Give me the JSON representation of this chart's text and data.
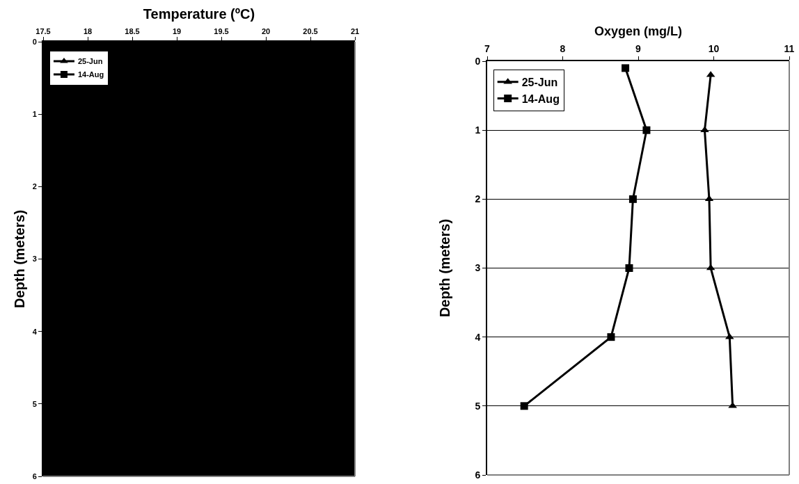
{
  "chart_data": [
    {
      "type": "line",
      "xlabel": "Temperature (ºC)",
      "ylabel": "Depth (meters)",
      "xlim": [
        17.5,
        21
      ],
      "xticks": [
        17.5,
        18,
        18.5,
        19,
        19.5,
        20,
        20.5,
        21
      ],
      "ylim": [
        6,
        0
      ],
      "yticks": [
        0,
        1,
        2,
        3,
        4,
        5,
        6
      ],
      "legend": "top left",
      "bands": [
        {
          "axis": "x",
          "from": 17.5,
          "to": 21,
          "color": "#000000"
        }
      ],
      "series": [
        {
          "name": "25-Jun",
          "color": "#000000",
          "marker": "triangle",
          "x": [
            null,
            null,
            null,
            null,
            null,
            null
          ],
          "values": [
            null,
            null,
            null,
            null,
            null,
            null
          ]
        },
        {
          "name": "14-Aug",
          "color": "#000000",
          "marker": "square",
          "x": [
            null,
            null,
            null,
            null,
            null,
            null
          ],
          "values": [
            null,
            null,
            null,
            null,
            null,
            null
          ]
        }
      ]
    },
    {
      "type": "line",
      "xlabel": "Oxygen (mg/L)",
      "ylabel": "Depth (meters)",
      "xlim": [
        7,
        11
      ],
      "xticks": [
        7,
        8,
        9,
        10,
        11
      ],
      "ylim": [
        6,
        0
      ],
      "yticks": [
        0,
        1,
        2,
        3,
        4,
        5,
        6
      ],
      "grid": "y",
      "legend": "top left",
      "series": [
        {
          "name": "25-Jun",
          "color": "#000000",
          "marker": "triangle",
          "x": [
            9.96,
            9.88,
            9.94,
            9.96,
            10.21,
            10.25
          ],
          "values": [
            0.2,
            1,
            2,
            3,
            4,
            5
          ]
        },
        {
          "name": "14-Aug",
          "color": "#000000",
          "marker": "square",
          "x": [
            8.83,
            9.11,
            8.93,
            8.88,
            8.64,
            7.49
          ],
          "values": [
            0.1,
            1,
            2,
            3,
            4,
            5
          ]
        }
      ]
    }
  ]
}
